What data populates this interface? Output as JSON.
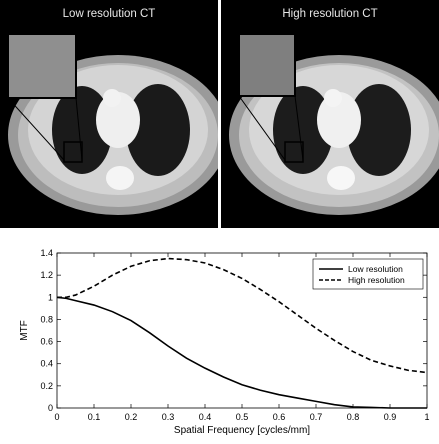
{
  "panels": {
    "left_title": "Low resolution CT",
    "right_title": "High resolution CT"
  },
  "colors": {
    "background": "#ffffff",
    "line": "#000000",
    "ct_bg": "#000000"
  },
  "chart_data": {
    "type": "line",
    "title": "",
    "xlabel": "Spatial Frequency [cycles/mm]",
    "ylabel": "MTF",
    "xlim": [
      0,
      1
    ],
    "ylim": [
      0,
      1.4
    ],
    "xticks": [
      "0",
      "0.1",
      "0.2",
      "0.3",
      "0.4",
      "0.5",
      "0.6",
      "0.7",
      "0.8",
      "0.9",
      "1"
    ],
    "yticks": [
      "0",
      "0.2",
      "0.4",
      "0.6",
      "0.8",
      "1",
      "1.2",
      "1.4"
    ],
    "grid": false,
    "legend_position": "top-right",
    "series": [
      {
        "name": "Low resolution",
        "style": "solid",
        "x": [
          0,
          0.025,
          0.05,
          0.1,
          0.15,
          0.2,
          0.25,
          0.3,
          0.35,
          0.4,
          0.45,
          0.5,
          0.55,
          0.6,
          0.65,
          0.7,
          0.75,
          0.8,
          0.85,
          0.9,
          0.95,
          1.0
        ],
        "y": [
          1.0,
          0.99,
          0.97,
          0.93,
          0.87,
          0.79,
          0.68,
          0.56,
          0.45,
          0.36,
          0.28,
          0.21,
          0.16,
          0.12,
          0.09,
          0.06,
          0.03,
          0.01,
          0.005,
          0.0,
          0.0,
          0.0
        ]
      },
      {
        "name": "High resolution",
        "style": "dashed",
        "x": [
          0,
          0.025,
          0.05,
          0.1,
          0.15,
          0.2,
          0.25,
          0.3,
          0.35,
          0.4,
          0.45,
          0.5,
          0.55,
          0.6,
          0.65,
          0.7,
          0.75,
          0.8,
          0.85,
          0.9,
          0.95,
          1.0
        ],
        "y": [
          1.0,
          1.0,
          1.02,
          1.1,
          1.2,
          1.28,
          1.33,
          1.35,
          1.34,
          1.31,
          1.25,
          1.17,
          1.07,
          0.96,
          0.84,
          0.72,
          0.61,
          0.51,
          0.43,
          0.38,
          0.34,
          0.32
        ]
      }
    ]
  }
}
